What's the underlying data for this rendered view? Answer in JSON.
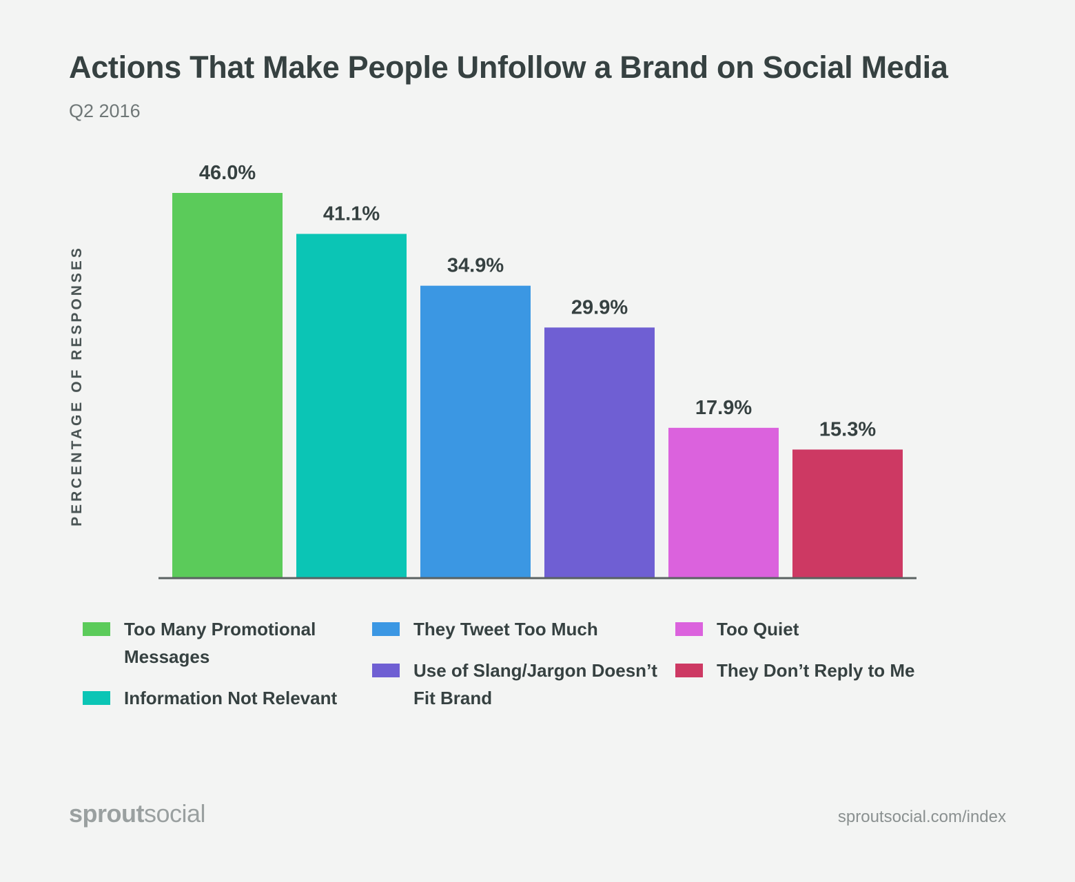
{
  "chart_data": {
    "type": "bar",
    "title": "Actions That Make People Unfollow a Brand on Social Media",
    "subtitle": "Q2 2016",
    "ylabel": "PERCENTAGE OF RESPONSES",
    "xlabel": "",
    "categories": [
      "Too Many Promotional Messages",
      "Information Not Relevant",
      "They Tweet Too Much",
      "Use of Slang/Jargon Doesn’t Fit Brand",
      "Too Quiet",
      "They Don’t Reply to Me"
    ],
    "values": [
      46.0,
      41.1,
      34.9,
      29.9,
      17.9,
      15.3
    ],
    "data_labels": [
      "46.0%",
      "41.1%",
      "34.9%",
      "29.9%",
      "17.9%",
      "15.3%"
    ],
    "colors": [
      "#5bcb5a",
      "#0bc5b5",
      "#3b97e3",
      "#6f5fd3",
      "#db62dd",
      "#cd3963"
    ],
    "grid": false,
    "legend": "bottom",
    "ylim": [
      0,
      46
    ]
  },
  "footer": {
    "logo_bold": "sprout",
    "logo_light": "social",
    "url": "sproutsocial.com/index"
  }
}
